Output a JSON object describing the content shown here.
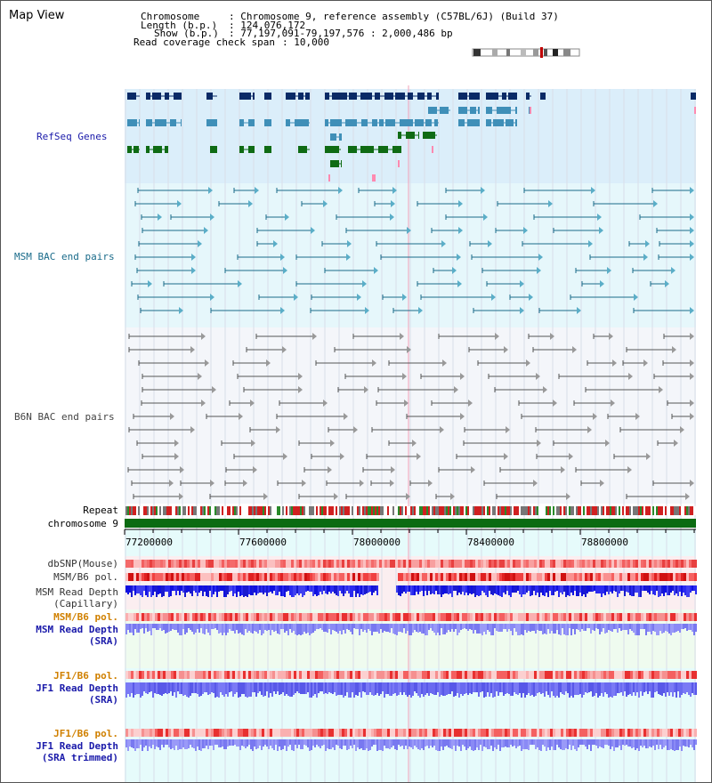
{
  "title": "Map View",
  "header": {
    "chromosome_key": "Chromosome",
    "chromosome_value": ": Chromosome 9, reference assembly (C57BL/6J) (Build 37)",
    "length_key": "Length (b.p.)",
    "length_value": ": 124,076,172",
    "show_key": "Show (b.p.)",
    "show_value": ": 77,197,091-79,197,576 : 2,000,486 bp",
    "coverage_key": "Read coverage check span",
    "coverage_value": ": 10,000"
  },
  "tracks": {
    "refseq": "RefSeq Genes",
    "msm_bac": "MSM BAC end pairs",
    "b6n_bac": "B6N BAC end pairs",
    "repeat": "Repeat",
    "chromosome": "chromosome 9",
    "dbsnp": "dbSNP(Mouse)",
    "msm_b6_pol": "MSM/B6 pol.",
    "msm_depth_cap_1": "MSM Read Depth",
    "msm_depth_cap_2": "(Capillary)",
    "msm_b6_pol2": "MSM/B6 pol.",
    "msm_depth_sra_1": "MSM Read Depth",
    "msm_depth_sra_2": "(SRA)",
    "jf1_b6_pol": "JF1/B6 pol.",
    "jf1_depth_sra_1": "JF1 Read Depth",
    "jf1_depth_sra_2": "(SRA)",
    "jf1_b6_pol2": "JF1/B6 pol.",
    "jf1_depth_trim_1": "JF1 Read Depth",
    "jf1_depth_trim_2": "(SRA trimmed)"
  },
  "axis_ticks": [
    "77200000",
    "77600000",
    "78000000",
    "78400000",
    "78800000"
  ],
  "colors": {
    "refseq_dark": "#0a2a66",
    "refseq_mid": "#3f8fb8",
    "refseq_green": "#0f6b14",
    "msm_line": "#1a6b8a",
    "b6n_line": "#555555",
    "chromosome_bar": "#0b6b12",
    "label_blue": "#1a1aaa",
    "label_orange": "#d08000",
    "label_teal": "#1a6b8a"
  }
}
